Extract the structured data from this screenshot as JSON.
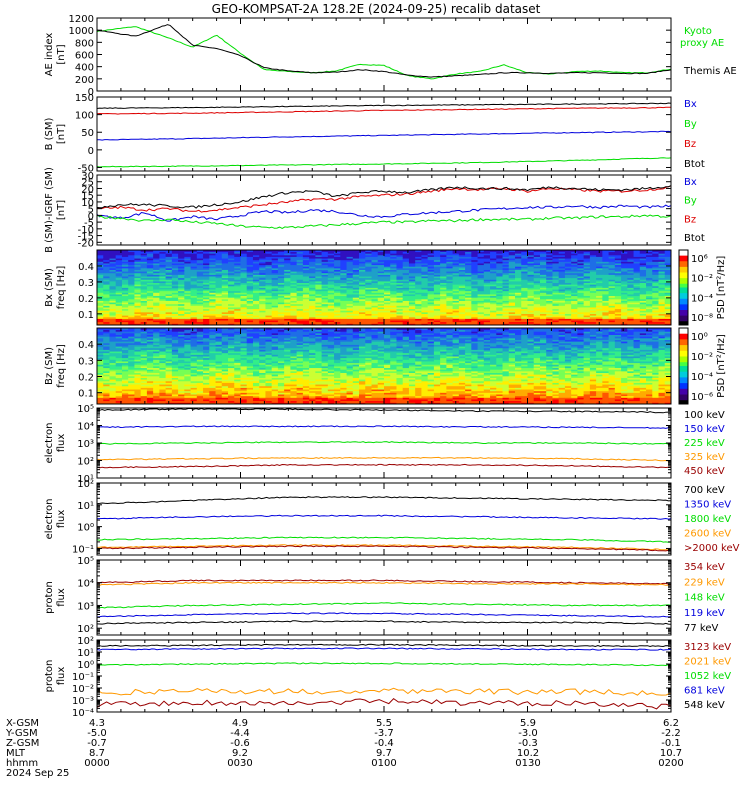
{
  "title": "GEO-KOMPSAT-2A 128.2E (2024-09-25) recalib dataset",
  "colors": {
    "black": "#000000",
    "green": "#00dd00",
    "blue": "#0000dd",
    "red": "#dd0000",
    "orange": "#ff9900",
    "darkred": "#990000"
  },
  "footer": {
    "row_labels": [
      "X-GSM",
      "Y-GSM",
      "Z-GSM",
      "MLT",
      "hhmm",
      "2024 Sep 25"
    ],
    "columns": [
      {
        "x": "4.3",
        "y": "-5.0",
        "z": "-0.7",
        "mlt": "8.7",
        "hhmm": "0000"
      },
      {
        "x": "4.9",
        "y": "-4.4",
        "z": "-0.6",
        "mlt": "9.2",
        "hhmm": "0030"
      },
      {
        "x": "5.5",
        "y": "-3.7",
        "z": "-0.4",
        "mlt": "9.7",
        "hhmm": "0100"
      },
      {
        "x": "5.9",
        "y": "-3.0",
        "z": "-0.3",
        "mlt": "10.2",
        "hhmm": "0130"
      },
      {
        "x": "6.2",
        "y": "-2.2",
        "z": "-0.1",
        "mlt": "10.7",
        "hhmm": "0200"
      }
    ]
  },
  "chart_data": [
    {
      "type": "line",
      "id": "ae",
      "ylabel": [
        "AE index",
        "[nT]"
      ],
      "ylim": [
        0,
        1200
      ],
      "log": false,
      "yticks": [
        "0",
        "200",
        "400",
        "600",
        "800",
        "1000",
        "1200"
      ],
      "ytick_values": [
        0,
        200,
        400,
        600,
        800,
        1000,
        1200
      ],
      "x": [
        0,
        8,
        15,
        20,
        25,
        30,
        35,
        40,
        45,
        50,
        55,
        60,
        65,
        70,
        75,
        80,
        85,
        90,
        95,
        100,
        105,
        110,
        115,
        120
      ],
      "series": [
        {
          "name": "Kyoto proxy AE",
          "color": "#00dd00",
          "values": [
            980,
            1060,
            870,
            720,
            920,
            620,
            350,
            320,
            300,
            330,
            440,
            420,
            250,
            200,
            280,
            320,
            430,
            300,
            280,
            320,
            330,
            300,
            300,
            360
          ]
        },
        {
          "name": "Themis AE",
          "color": "#000000",
          "values": [
            1000,
            900,
            1100,
            750,
            700,
            580,
            380,
            330,
            300,
            310,
            350,
            320,
            260,
            230,
            250,
            270,
            300,
            300,
            290,
            300,
            300,
            290,
            290,
            350
          ]
        }
      ]
    },
    {
      "type": "line",
      "id": "b",
      "ylabel": [
        "B (SM)",
        "[nT]"
      ],
      "ylim": [
        -60,
        150
      ],
      "log": false,
      "yticks": [
        "-50",
        "0",
        "50",
        "100",
        "150"
      ],
      "ytick_values": [
        -50,
        0,
        50,
        100,
        150
      ],
      "x": [
        0,
        20,
        40,
        60,
        80,
        100,
        120
      ],
      "series": [
        {
          "name": "Bx",
          "color": "#0000dd",
          "values": [
            28,
            32,
            37,
            41,
            45,
            49,
            52
          ]
        },
        {
          "name": "By",
          "color": "#00dd00",
          "values": [
            -48,
            -46,
            -43,
            -40,
            -36,
            -30,
            -22
          ]
        },
        {
          "name": "Bz",
          "color": "#dd0000",
          "values": [
            102,
            104,
            108,
            112,
            115,
            118,
            120
          ]
        },
        {
          "name": "Btot",
          "color": "#000000",
          "values": [
            118,
            120,
            123,
            126,
            128,
            130,
            132
          ]
        }
      ]
    },
    {
      "type": "line",
      "id": "db",
      "ylabel": [
        "B (SM)-IGRF (SM)",
        "[nT]"
      ],
      "ylim": [
        -22,
        30
      ],
      "log": false,
      "yticks": [
        "-20",
        "-15",
        "-10",
        "-5",
        "0",
        "5",
        "10",
        "15",
        "20",
        "25",
        "30"
      ],
      "ytick_values": [
        -20,
        -15,
        -10,
        -5,
        0,
        5,
        10,
        15,
        20,
        25,
        30
      ],
      "x": [
        0,
        5,
        10,
        15,
        20,
        25,
        30,
        35,
        40,
        45,
        50,
        55,
        60,
        65,
        70,
        75,
        80,
        85,
        90,
        95,
        100,
        105,
        110,
        115,
        120
      ],
      "series": [
        {
          "name": "Bx",
          "color": "#0000dd",
          "values": [
            0,
            -2,
            2,
            -4,
            -1,
            -3,
            0,
            3,
            2,
            4,
            3,
            0,
            -1,
            1,
            2,
            3,
            4,
            5,
            6,
            6,
            7,
            6,
            7,
            6,
            7
          ]
        },
        {
          "name": "By",
          "color": "#00dd00",
          "values": [
            -1,
            -2,
            -4,
            -3,
            -5,
            -6,
            -8,
            -9,
            -9,
            -8,
            -7,
            -6,
            -5,
            -5,
            -4,
            -4,
            -3,
            -3,
            -3,
            -2,
            -2,
            -1,
            -1,
            0,
            -1
          ]
        },
        {
          "name": "Bz",
          "color": "#dd0000",
          "values": [
            5,
            6,
            4,
            5,
            3,
            4,
            6,
            8,
            10,
            12,
            12,
            14,
            15,
            16,
            18,
            20,
            19,
            20,
            18,
            20,
            19,
            18,
            18,
            19,
            21
          ]
        },
        {
          "name": "Btot",
          "color": "#000000",
          "values": [
            6,
            8,
            8,
            7,
            6,
            8,
            10,
            14,
            17,
            18,
            14,
            17,
            18,
            17,
            19,
            21,
            20,
            20,
            19,
            21,
            20,
            19,
            19,
            20,
            22
          ]
        }
      ]
    },
    {
      "type": "heatmap",
      "id": "bx-psd",
      "ylabel": [
        "Bx (SM)",
        "freq [Hz]"
      ],
      "ylim": [
        0.03,
        0.5
      ],
      "yticks": [
        "0.1",
        "0.2",
        "0.3",
        "0.4"
      ],
      "ytick_values": [
        0.1,
        0.2,
        0.3,
        0.4
      ],
      "colorbar": {
        "label": "PSD [nT²/Hz]",
        "ticks": [
          "10⁶",
          "10⁻²",
          "10⁻⁴",
          "10⁻⁸"
        ]
      }
    },
    {
      "type": "heatmap",
      "id": "bz-psd",
      "ylabel": [
        "Bz (SM)",
        "freq [Hz]"
      ],
      "ylim": [
        0.03,
        0.5
      ],
      "yticks": [
        "0.1",
        "0.2",
        "0.3",
        "0.4"
      ],
      "ytick_values": [
        0.1,
        0.2,
        0.3,
        0.4
      ],
      "colorbar": {
        "label": "PSD [nT²/Hz]",
        "ticks": [
          "10⁰",
          "10⁻²",
          "10⁻⁴",
          "10⁻⁶"
        ]
      }
    },
    {
      "type": "line",
      "id": "e-flux-1",
      "ylabel": [
        "electron",
        "flux"
      ],
      "log": true,
      "ylim": [
        1,
        5
      ],
      "yticks": [
        "10⁵",
        "10⁴",
        "10³",
        "10²",
        "10¹"
      ],
      "ytick_values": [
        5,
        4,
        3,
        2,
        1
      ],
      "x": [
        0,
        20,
        40,
        60,
        80,
        100,
        120
      ],
      "series": [
        {
          "name": "100 keV",
          "color": "#000000",
          "values": [
            4.88,
            4.95,
            4.93,
            4.88,
            4.82,
            4.8,
            4.75
          ]
        },
        {
          "name": "150 keV",
          "color": "#0000dd",
          "values": [
            3.9,
            3.95,
            3.95,
            3.95,
            3.92,
            3.9,
            3.85
          ]
        },
        {
          "name": "225 keV",
          "color": "#00dd00",
          "values": [
            2.95,
            3.0,
            3.05,
            3.05,
            3.0,
            3.0,
            2.95
          ]
        },
        {
          "name": "325 keV",
          "color": "#ff9900",
          "values": [
            2.05,
            2.1,
            2.15,
            2.15,
            2.15,
            2.1,
            2.0
          ]
        },
        {
          "name": "450 keV",
          "color": "#990000",
          "values": [
            1.6,
            1.65,
            1.75,
            1.75,
            1.75,
            1.7,
            1.6
          ]
        }
      ]
    },
    {
      "type": "line",
      "id": "e-flux-2",
      "ylabel": [
        "electron",
        "flux"
      ],
      "log": true,
      "ylim": [
        -1.3,
        2
      ],
      "yticks": [
        "10²",
        "10¹",
        "10⁰",
        "10⁻¹"
      ],
      "ytick_values": [
        2,
        1,
        0,
        -1
      ],
      "x": [
        0,
        20,
        40,
        60,
        80,
        100,
        120
      ],
      "series": [
        {
          "name": "700 keV",
          "color": "#000000",
          "values": [
            1.05,
            1.2,
            1.35,
            1.35,
            1.3,
            1.25,
            1.2
          ]
        },
        {
          "name": "1350 keV",
          "color": "#0000dd",
          "values": [
            0.35,
            0.45,
            0.5,
            0.5,
            0.45,
            0.4,
            0.35
          ]
        },
        {
          "name": "1800 keV",
          "color": "#00dd00",
          "values": [
            -0.6,
            -0.55,
            -0.5,
            -0.5,
            -0.55,
            -0.6,
            -0.7
          ]
        },
        {
          "name": "2600 keV",
          "color": "#ff9900",
          "values": [
            -0.95,
            -0.9,
            -0.85,
            -0.85,
            -0.9,
            -0.95,
            -1.05
          ]
        },
        {
          "name": ">2000 keV",
          "color": "#990000",
          "values": [
            -1.0,
            -0.95,
            -0.9,
            -0.9,
            -0.95,
            -1.0,
            -1.1
          ]
        }
      ]
    },
    {
      "type": "line",
      "id": "p-flux-1",
      "ylabel": [
        "proton",
        "flux"
      ],
      "log": true,
      "ylim": [
        1.7,
        5
      ],
      "yticks": [
        "10⁵",
        "10⁴",
        "10³",
        "10²"
      ],
      "ytick_values": [
        5,
        4,
        3,
        2
      ],
      "x": [
        0,
        20,
        40,
        60,
        80,
        100,
        120
      ],
      "series": [
        {
          "name": "354 keV",
          "color": "#990000",
          "values": [
            4.0,
            4.1,
            4.1,
            4.1,
            4.05,
            4.0,
            3.95
          ]
        },
        {
          "name": "229 keV",
          "color": "#ff9900",
          "values": [
            3.9,
            4.0,
            4.0,
            4.0,
            3.95,
            3.95,
            3.9
          ]
        },
        {
          "name": "148 keV",
          "color": "#00dd00",
          "values": [
            2.9,
            3.0,
            3.05,
            3.1,
            3.05,
            3.0,
            3.0
          ]
        },
        {
          "name": "119 keV",
          "color": "#0000dd",
          "values": [
            2.5,
            2.6,
            2.65,
            2.65,
            2.6,
            2.55,
            2.5
          ]
        },
        {
          "name": "77 keV",
          "color": "#000000",
          "values": [
            2.2,
            2.25,
            2.3,
            2.3,
            2.25,
            2.25,
            2.2
          ]
        }
      ]
    },
    {
      "type": "line",
      "id": "p-flux-2",
      "ylabel": [
        "proton",
        "flux"
      ],
      "log": true,
      "ylim": [
        -4,
        2
      ],
      "yticks": [
        "10²",
        "10¹",
        "10⁰",
        "10⁻¹",
        "10⁻²",
        "10⁻³",
        "10⁻⁴"
      ],
      "ytick_values": [
        2,
        1,
        0,
        -1,
        -2,
        -3,
        -4
      ],
      "x": [
        0,
        20,
        40,
        60,
        80,
        100,
        120
      ],
      "series": [
        {
          "name": "3123 keV",
          "color": "#990000",
          "values": [
            -3.4,
            -3.2,
            -3.3,
            -3.1,
            -3.3,
            -3.2,
            -3.6
          ]
        },
        {
          "name": "2021 keV",
          "color": "#ff9900",
          "values": [
            -2.4,
            -2.2,
            -2.3,
            -2.2,
            -2.3,
            -2.3,
            -2.5
          ]
        },
        {
          "name": "1052 keV",
          "color": "#00dd00",
          "values": [
            -0.1,
            0.0,
            0.05,
            0.05,
            0.0,
            -0.05,
            -0.1
          ]
        },
        {
          "name": "681 keV",
          "color": "#0000dd",
          "values": [
            1.2,
            1.25,
            1.3,
            1.3,
            1.25,
            1.2,
            1.2
          ]
        },
        {
          "name": "548 keV",
          "color": "#000000",
          "values": [
            1.5,
            1.55,
            1.6,
            1.6,
            1.55,
            1.5,
            1.5
          ]
        }
      ]
    }
  ]
}
